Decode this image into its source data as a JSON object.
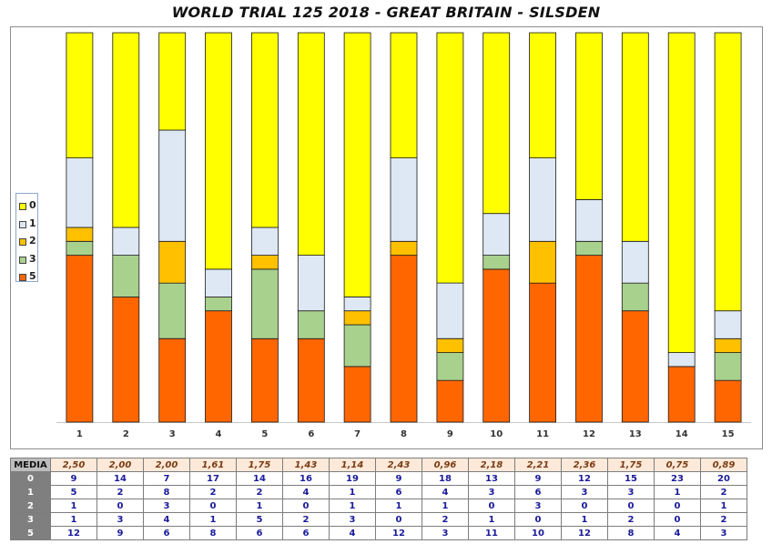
{
  "title": "WORLD TRIAL 125 2018 - GREAT BRITAIN - SILSDEN",
  "colors": {
    "0": "#ffff00",
    "1": "#dde8f4",
    "2": "#ffc000",
    "3": "#a9d18e",
    "5": "#ff6600"
  },
  "chart_data": {
    "type": "bar",
    "stacked": true,
    "percent_stacked": true,
    "categories": [
      "1",
      "2",
      "3",
      "4",
      "5",
      "6",
      "7",
      "8",
      "9",
      "10",
      "11",
      "12",
      "13",
      "14",
      "15"
    ],
    "series": [
      {
        "name": "5",
        "values": [
          12,
          9,
          6,
          8,
          6,
          6,
          4,
          12,
          3,
          11,
          10,
          12,
          8,
          4,
          3
        ]
      },
      {
        "name": "3",
        "values": [
          1,
          3,
          4,
          1,
          5,
          2,
          3,
          0,
          2,
          1,
          0,
          1,
          2,
          0,
          2
        ]
      },
      {
        "name": "2",
        "values": [
          1,
          0,
          3,
          0,
          1,
          0,
          1,
          1,
          1,
          0,
          3,
          0,
          0,
          0,
          1
        ]
      },
      {
        "name": "1",
        "values": [
          5,
          2,
          8,
          2,
          2,
          4,
          1,
          6,
          4,
          3,
          6,
          3,
          3,
          1,
          2
        ]
      },
      {
        "name": "0",
        "values": [
          9,
          14,
          7,
          17,
          14,
          16,
          19,
          9,
          18,
          13,
          9,
          12,
          15,
          23,
          20
        ]
      }
    ],
    "legend": {
      "position": "left",
      "order": [
        "0",
        "1",
        "2",
        "3",
        "5"
      ]
    },
    "grid": false
  },
  "table": {
    "media_label": "MEDIA",
    "media": [
      "2,50",
      "2,00",
      "2,00",
      "1,61",
      "1,75",
      "1,43",
      "1,14",
      "2,43",
      "0,96",
      "2,18",
      "2,21",
      "2,36",
      "1,75",
      "0,75",
      "0,89"
    ],
    "rows": [
      {
        "label": "0",
        "values": [
          9,
          14,
          7,
          17,
          14,
          16,
          19,
          9,
          18,
          13,
          9,
          12,
          15,
          23,
          20
        ]
      },
      {
        "label": "1",
        "values": [
          5,
          2,
          8,
          2,
          2,
          4,
          1,
          6,
          4,
          3,
          6,
          3,
          3,
          1,
          2
        ]
      },
      {
        "label": "2",
        "values": [
          1,
          0,
          3,
          0,
          1,
          0,
          1,
          1,
          1,
          0,
          3,
          0,
          0,
          0,
          1
        ]
      },
      {
        "label": "3",
        "values": [
          1,
          3,
          4,
          1,
          5,
          2,
          3,
          0,
          2,
          1,
          0,
          1,
          2,
          0,
          2
        ]
      },
      {
        "label": "5",
        "values": [
          12,
          9,
          6,
          8,
          6,
          6,
          4,
          12,
          3,
          11,
          10,
          12,
          8,
          4,
          3
        ]
      }
    ]
  }
}
